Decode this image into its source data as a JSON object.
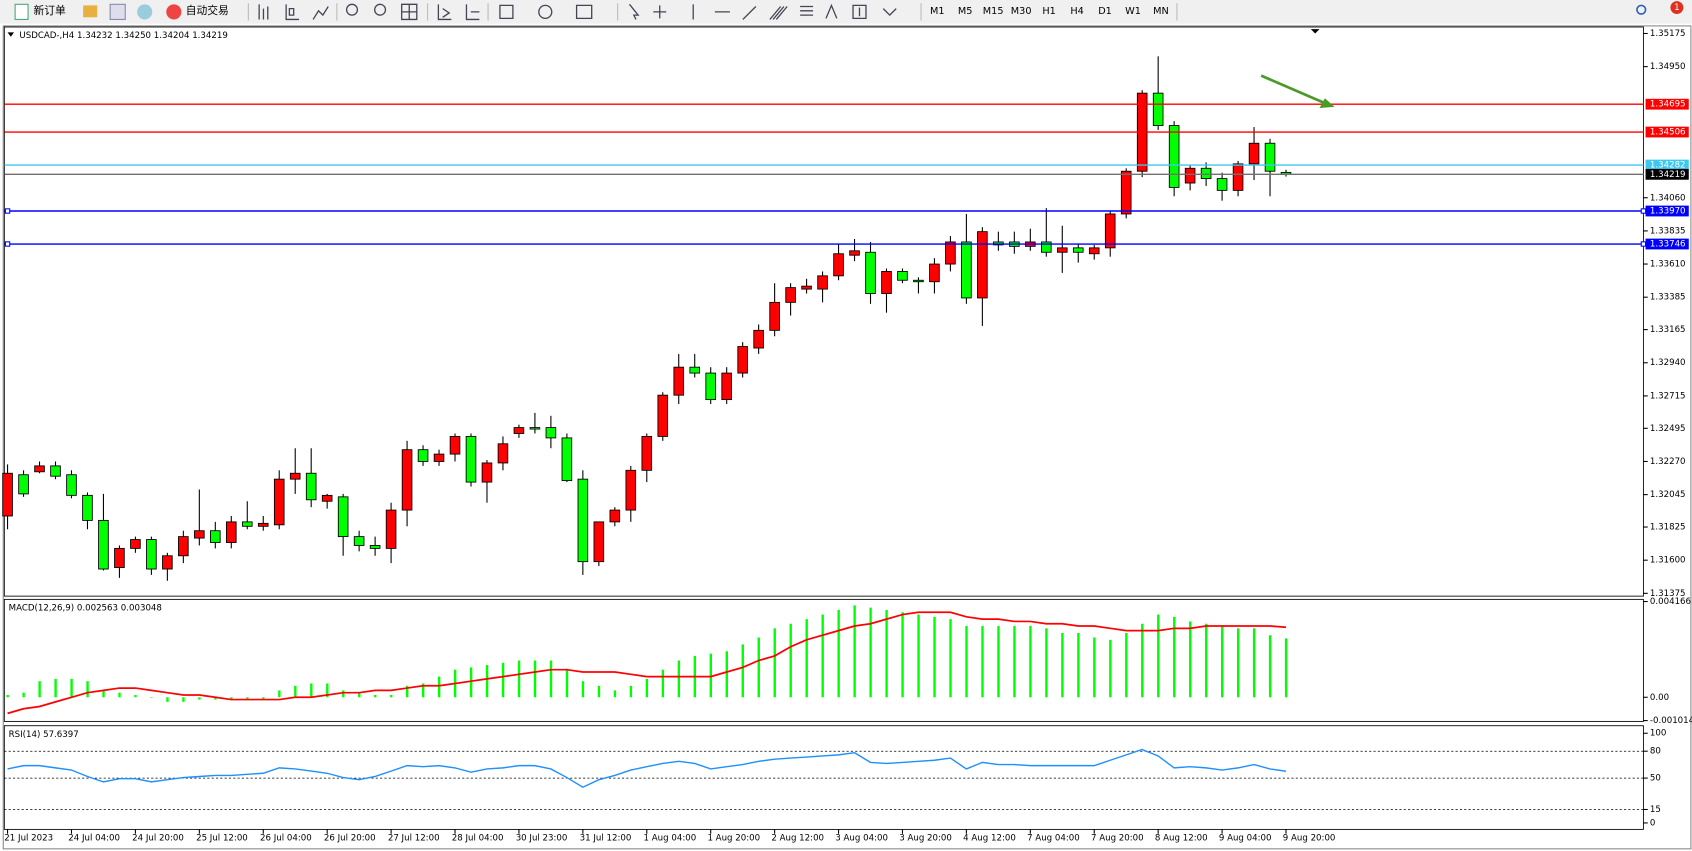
{
  "toolbar": {
    "new_order": "新订单",
    "auto_trading": "自动交易",
    "timeframes": [
      "M1",
      "M5",
      "M15",
      "M30",
      "H1",
      "H4",
      "D1",
      "W1",
      "MN"
    ],
    "notifications": "1"
  },
  "chart_data": [
    {
      "type": "candlestick",
      "title": "USDCAD-,H4 1.34232 1.34250 1.34204 1.34219",
      "categories": [
        "21 Jul 2023",
        null,
        null,
        null,
        "24 Jul 04:00",
        null,
        null,
        null,
        "24 Jul 20:00",
        null,
        null,
        null,
        "25 Jul 12:00",
        null,
        null,
        null,
        "26 Jul 04:00",
        null,
        null,
        null,
        "26 Jul 20:00",
        null,
        null,
        null,
        "27 Jul 12:00",
        null,
        null,
        null,
        "28 Jul 04:00",
        null,
        null,
        null,
        "30 Jul 23:00",
        null,
        null,
        null,
        "31 Jul 12:00",
        null,
        null,
        null,
        "1 Aug 04:00",
        null,
        null,
        null,
        "1 Aug 20:00",
        null,
        null,
        null,
        "2 Aug 12:00",
        null,
        null,
        null,
        "3 Aug 04:00",
        null,
        null,
        null,
        "3 Aug 20:00",
        null,
        null,
        null,
        "4 Aug 12:00",
        null,
        null,
        null,
        "7 Aug 04:00",
        null,
        null,
        null,
        "7 Aug 20:00",
        null,
        null,
        null,
        "8 Aug 12:00",
        null,
        null,
        null,
        "9 Aug 04:00",
        null,
        null,
        null,
        "9 Aug 20:00"
      ],
      "open": [
        1.319,
        1.3218,
        1.322,
        1.3224,
        1.3218,
        1.3204,
        1.3187,
        1.3155,
        1.3168,
        1.3174,
        1.3154,
        1.3163,
        1.3175,
        1.318,
        1.3172,
        1.3186,
        1.3183,
        1.3184,
        1.3215,
        1.3219,
        1.32,
        1.3203,
        1.3176,
        1.317,
        1.3168,
        1.3194,
        1.3235,
        1.3227,
        1.3232,
        1.3244,
        1.3213,
        1.3226,
        1.3246,
        1.325,
        1.325,
        1.3243,
        1.3215,
        1.3159,
        1.3186,
        1.3194,
        1.3221,
        1.3244,
        1.3272,
        1.3291,
        1.3287,
        1.3269,
        1.3287,
        1.3304,
        1.3316,
        1.3335,
        1.3344,
        1.3344,
        1.3353,
        1.3367,
        1.3369,
        1.3341,
        1.3356,
        1.335,
        1.3349,
        1.3361,
        1.3376,
        1.3338,
        1.3376,
        1.3376,
        1.3373,
        1.3376,
        1.3369,
        1.3372,
        1.3368,
        1.3372,
        1.3395,
        1.3424,
        1.3477,
        1.3455,
        1.3416,
        1.3426,
        1.3419,
        1.3411,
        1.3429,
        1.3443,
        1.34232
      ],
      "high": [
        1.3225,
        1.3221,
        1.3227,
        1.3227,
        1.3221,
        1.3206,
        1.3205,
        1.317,
        1.3176,
        1.3176,
        1.3165,
        1.318,
        1.3208,
        1.3186,
        1.319,
        1.32,
        1.319,
        1.3221,
        1.3236,
        1.3236,
        1.3205,
        1.3205,
        1.318,
        1.3176,
        1.3199,
        1.3241,
        1.3238,
        1.3235,
        1.3246,
        1.3246,
        1.3228,
        1.3244,
        1.3252,
        1.326,
        1.3258,
        1.3246,
        1.3221,
        1.3186,
        1.3196,
        1.3224,
        1.3246,
        1.3274,
        1.33,
        1.33,
        1.3291,
        1.3291,
        1.3308,
        1.332,
        1.3348,
        1.3348,
        1.3351,
        1.3356,
        1.3375,
        1.3378,
        1.3376,
        1.3358,
        1.3358,
        1.3352,
        1.3365,
        1.338,
        1.3395,
        1.3386,
        1.3383,
        1.3383,
        1.3385,
        1.3399,
        1.3387,
        1.3375,
        1.3374,
        1.3397,
        1.3426,
        1.3479,
        1.3502,
        1.3458,
        1.3428,
        1.343,
        1.3423,
        1.3431,
        1.3454,
        1.3446,
        1.3425
      ],
      "low": [
        1.3181,
        1.3203,
        1.3219,
        1.3215,
        1.3202,
        1.3181,
        1.3153,
        1.3148,
        1.3165,
        1.315,
        1.3146,
        1.3158,
        1.317,
        1.3168,
        1.3168,
        1.3181,
        1.318,
        1.3181,
        1.3205,
        1.3196,
        1.3195,
        1.3163,
        1.3166,
        1.3163,
        1.3158,
        1.3183,
        1.3224,
        1.3224,
        1.3227,
        1.321,
        1.3199,
        1.3221,
        1.3243,
        1.3246,
        1.3236,
        1.3213,
        1.315,
        1.3156,
        1.3183,
        1.3186,
        1.3213,
        1.3241,
        1.3266,
        1.3284,
        1.3266,
        1.3266,
        1.3284,
        1.33,
        1.3312,
        1.3326,
        1.3341,
        1.3335,
        1.335,
        1.3363,
        1.3334,
        1.3328,
        1.3348,
        1.3341,
        1.3341,
        1.3356,
        1.3334,
        1.3319,
        1.337,
        1.3368,
        1.337,
        1.3366,
        1.3355,
        1.3362,
        1.3364,
        1.3366,
        1.3392,
        1.342,
        1.3452,
        1.3407,
        1.3411,
        1.3414,
        1.3404,
        1.3407,
        1.3418,
        1.3407,
        1.34204
      ],
      "close": [
        1.3219,
        1.3205,
        1.3224,
        1.3217,
        1.3204,
        1.3187,
        1.3154,
        1.3168,
        1.3174,
        1.3154,
        1.3163,
        1.3176,
        1.318,
        1.3172,
        1.3186,
        1.3183,
        1.3185,
        1.3215,
        1.3219,
        1.3201,
        1.3204,
        1.3176,
        1.317,
        1.3168,
        1.3194,
        1.3235,
        1.3227,
        1.3232,
        1.3244,
        1.3213,
        1.3226,
        1.3239,
        1.325,
        1.3249,
        1.3243,
        1.3214,
        1.3159,
        1.3186,
        1.3194,
        1.3221,
        1.3244,
        1.3272,
        1.3291,
        1.3287,
        1.3269,
        1.3287,
        1.3305,
        1.3316,
        1.3335,
        1.3345,
        1.3346,
        1.3353,
        1.3368,
        1.337,
        1.3341,
        1.3356,
        1.335,
        1.3349,
        1.3361,
        1.3376,
        1.3338,
        1.3383,
        1.3374,
        1.3373,
        1.3376,
        1.3369,
        1.3372,
        1.3369,
        1.3372,
        1.3395,
        1.3424,
        1.3477,
        1.3455,
        1.3413,
        1.3426,
        1.3419,
        1.3411,
        1.3429,
        1.3443,
        1.3424,
        1.34219
      ],
      "up_color": "#ff0000",
      "down_color": "#00ff00",
      "outline_color": "#000000",
      "ylim": [
        1.31356,
        1.35219
      ],
      "yticks": [
        1.35175,
        {
          "value": 1.3495,
          "label": "1.34950"
        },
        {
          "value": 1.3406,
          "label": "1.34060"
        },
        1.33835,
        {
          "value": 1.3361,
          "label": "1.33610"
        },
        1.33385,
        1.33165,
        {
          "value": 1.3294,
          "label": "1.32940"
        },
        1.32715,
        1.32495,
        {
          "value": 1.3227,
          "label": "1.32270"
        },
        1.32045,
        1.31825,
        {
          "value": 1.316,
          "label": "1.31600"
        },
        1.31375
      ],
      "hlines": [
        {
          "value": 1.34695,
          "color": "#ff0000",
          "box_color": "#ff0000"
        },
        {
          "value": 1.34506,
          "color": "#ff0000",
          "box_color": "#ff0000"
        },
        {
          "value": 1.34282,
          "color": "#3cc8f0",
          "box_color": "#3cc8f0"
        },
        {
          "value": 1.34219,
          "color": "#707070",
          "box_color": "#000000"
        },
        {
          "value": 1.3397,
          "label": "1.33970",
          "color": "#0000ff",
          "box_color": "#0000ff",
          "selected": true
        },
        {
          "value": 1.33746,
          "color": "#0000ff",
          "box_color": "#0000ff",
          "selected": true
        }
      ]
    },
    {
      "type": "macd",
      "title": "MACD(12,26,9) 0.002563 0.003048",
      "histogram": {
        "color": "#00ff00",
        "values": [
          0.0001,
          0.0002,
          0.0007,
          0.0008,
          0.0008,
          0.0007,
          0.0003,
          0.0002,
          0.0001,
          0,
          -0.0002,
          -0.0002,
          -0.0001,
          -0.0001,
          -0.0001,
          -0.0001,
          -0.0001,
          0.0003,
          0.0005,
          0.0006,
          0.0006,
          0.0003,
          0.0002,
          0.0001,
          0.0001,
          0.0005,
          0.0006,
          0.0009,
          0.0012,
          0.0013,
          0.0014,
          0.0015,
          0.0016,
          0.0016,
          0.0016,
          0.0012,
          0.0007,
          0.0005,
          0.0003,
          0.0005,
          0.0008,
          0.0012,
          0.0016,
          0.0018,
          0.0019,
          0.002,
          0.0023,
          0.0026,
          0.003,
          0.0032,
          0.0034,
          0.0036,
          0.0038,
          0.004,
          0.0039,
          0.0038,
          0.0037,
          0.0036,
          0.0035,
          0.0034,
          0.0031,
          0.0031,
          0.0031,
          0.0031,
          0.0031,
          0.003,
          0.0028,
          0.0028,
          0.0026,
          0.0025,
          0.0028,
          0.0032,
          0.0036,
          0.0035,
          0.0033,
          0.0032,
          0.0031,
          0.003,
          0.003,
          0.0027,
          0.002563
        ]
      },
      "signal": {
        "color": "#ff0000",
        "values": [
          -0.0007,
          -0.0005,
          -0.0004,
          -0.0002,
          0,
          0.0002,
          0.0003,
          0.0004,
          0.0004,
          0.0003,
          0.0002,
          0.0001,
          0.0001,
          0,
          -0.0001,
          -0.0001,
          -0.0001,
          -0.0001,
          0,
          0,
          0.0001,
          0.0002,
          0.0002,
          0.0003,
          0.0003,
          0.0004,
          0.0005,
          0.0005,
          0.0006,
          0.0007,
          0.0008,
          0.0009,
          0.001,
          0.0011,
          0.0012,
          0.0012,
          0.0011,
          0.0011,
          0.0011,
          0.001,
          0.0009,
          0.0009,
          0.0009,
          0.0009,
          0.0009,
          0.0011,
          0.0013,
          0.0016,
          0.0018,
          0.0022,
          0.0025,
          0.0027,
          0.0029,
          0.0031,
          0.0032,
          0.0034,
          0.0036,
          0.0037,
          0.0037,
          0.0037,
          0.0035,
          0.0034,
          0.0034,
          0.0033,
          0.0033,
          0.0032,
          0.0032,
          0.0031,
          0.0031,
          0.003,
          0.0029,
          0.0029,
          0.0029,
          0.003,
          0.003,
          0.0031,
          0.0031,
          0.0031,
          0.0031,
          0.0031,
          0.003048
        ]
      },
      "ylim": [
        -0.00105,
        0.00426
      ],
      "yticks": [
        0.004166,
        {
          "value": 0,
          "label": "0.00"
        },
        -0.001014
      ]
    },
    {
      "type": "line",
      "title": "RSI(14) 57.6397",
      "color": "#1e90ff",
      "values": [
        60.2,
        63.9,
        63.9,
        61.4,
        59.0,
        51.8,
        45.8,
        49.4,
        49.4,
        45.8,
        48.2,
        50.6,
        51.8,
        53.0,
        53.0,
        54.2,
        55.4,
        61.4,
        60.2,
        57.8,
        55.4,
        50.6,
        48.2,
        51.8,
        57.8,
        63.9,
        62.7,
        63.9,
        61.4,
        56.6,
        60.2,
        61.4,
        63.9,
        63.9,
        60.2,
        50.6,
        39.8,
        48.2,
        53.0,
        59.0,
        62.7,
        66.3,
        68.7,
        66.3,
        60.2,
        62.7,
        65.1,
        68.7,
        71.1,
        72.3,
        73.5,
        74.7,
        75.9,
        78.3,
        67.5,
        66.3,
        67.5,
        68.7,
        69.9,
        72.3,
        60.2,
        67.5,
        65.1,
        65.1,
        63.9,
        63.9,
        63.9,
        63.9,
        63.9,
        69.9,
        75.9,
        81.9,
        74.7,
        61.4,
        62.7,
        61.4,
        59.0,
        61.4,
        65.1,
        60.2,
        57.6397
      ],
      "ylim": [
        -7.2,
        108.4
      ],
      "yticks": [
        100,
        80,
        50,
        15,
        0
      ],
      "levels": [
        80,
        50,
        15
      ]
    }
  ]
}
